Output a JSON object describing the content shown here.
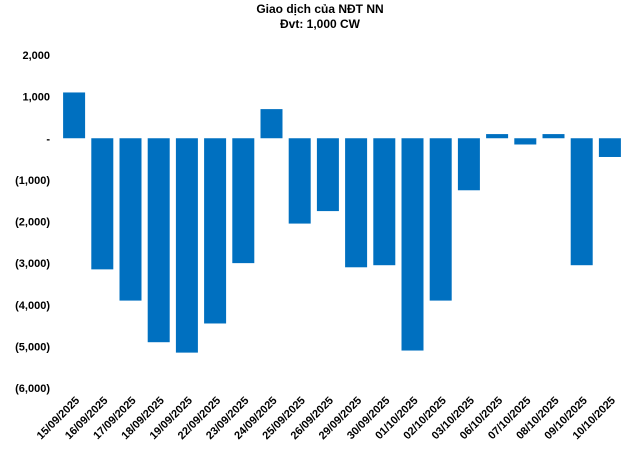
{
  "chart_data": {
    "type": "bar",
    "title": "Giao dịch của NĐT NN",
    "subtitle": "Đvt: 1,000 CW",
    "categories": [
      "15/09/2025",
      "16/09/2025",
      "17/09/2025",
      "18/09/2025",
      "19/09/2025",
      "22/09/2025",
      "23/09/2025",
      "24/09/2025",
      "25/09/2025",
      "26/09/2025",
      "29/09/2025",
      "30/09/2025",
      "01/10/2025",
      "02/10/2025",
      "03/10/2025",
      "06/10/2025",
      "07/10/2025",
      "08/10/2025",
      "09/10/2025",
      "10/10/2025"
    ],
    "values": [
      1100,
      -3150,
      -3900,
      -4900,
      -5150,
      -4450,
      -3000,
      700,
      -2050,
      -1750,
      -3100,
      -3050,
      -5100,
      -3900,
      -1250,
      100,
      -150,
      100,
      -3050,
      -450
    ],
    "ylim": [
      -6000,
      2000
    ],
    "yticks": [
      2000,
      1000,
      0,
      -1000,
      -2000,
      -3000,
      -4000,
      -5000,
      -6000
    ],
    "ytick_labels": [
      "2,000",
      "1,000",
      "-",
      "(1,000)",
      "(2,000)",
      "(3,000)",
      "(4,000)",
      "(5,000)",
      "(6,000)"
    ],
    "bar_color": "#0070C0",
    "grid": false,
    "legend": false
  }
}
